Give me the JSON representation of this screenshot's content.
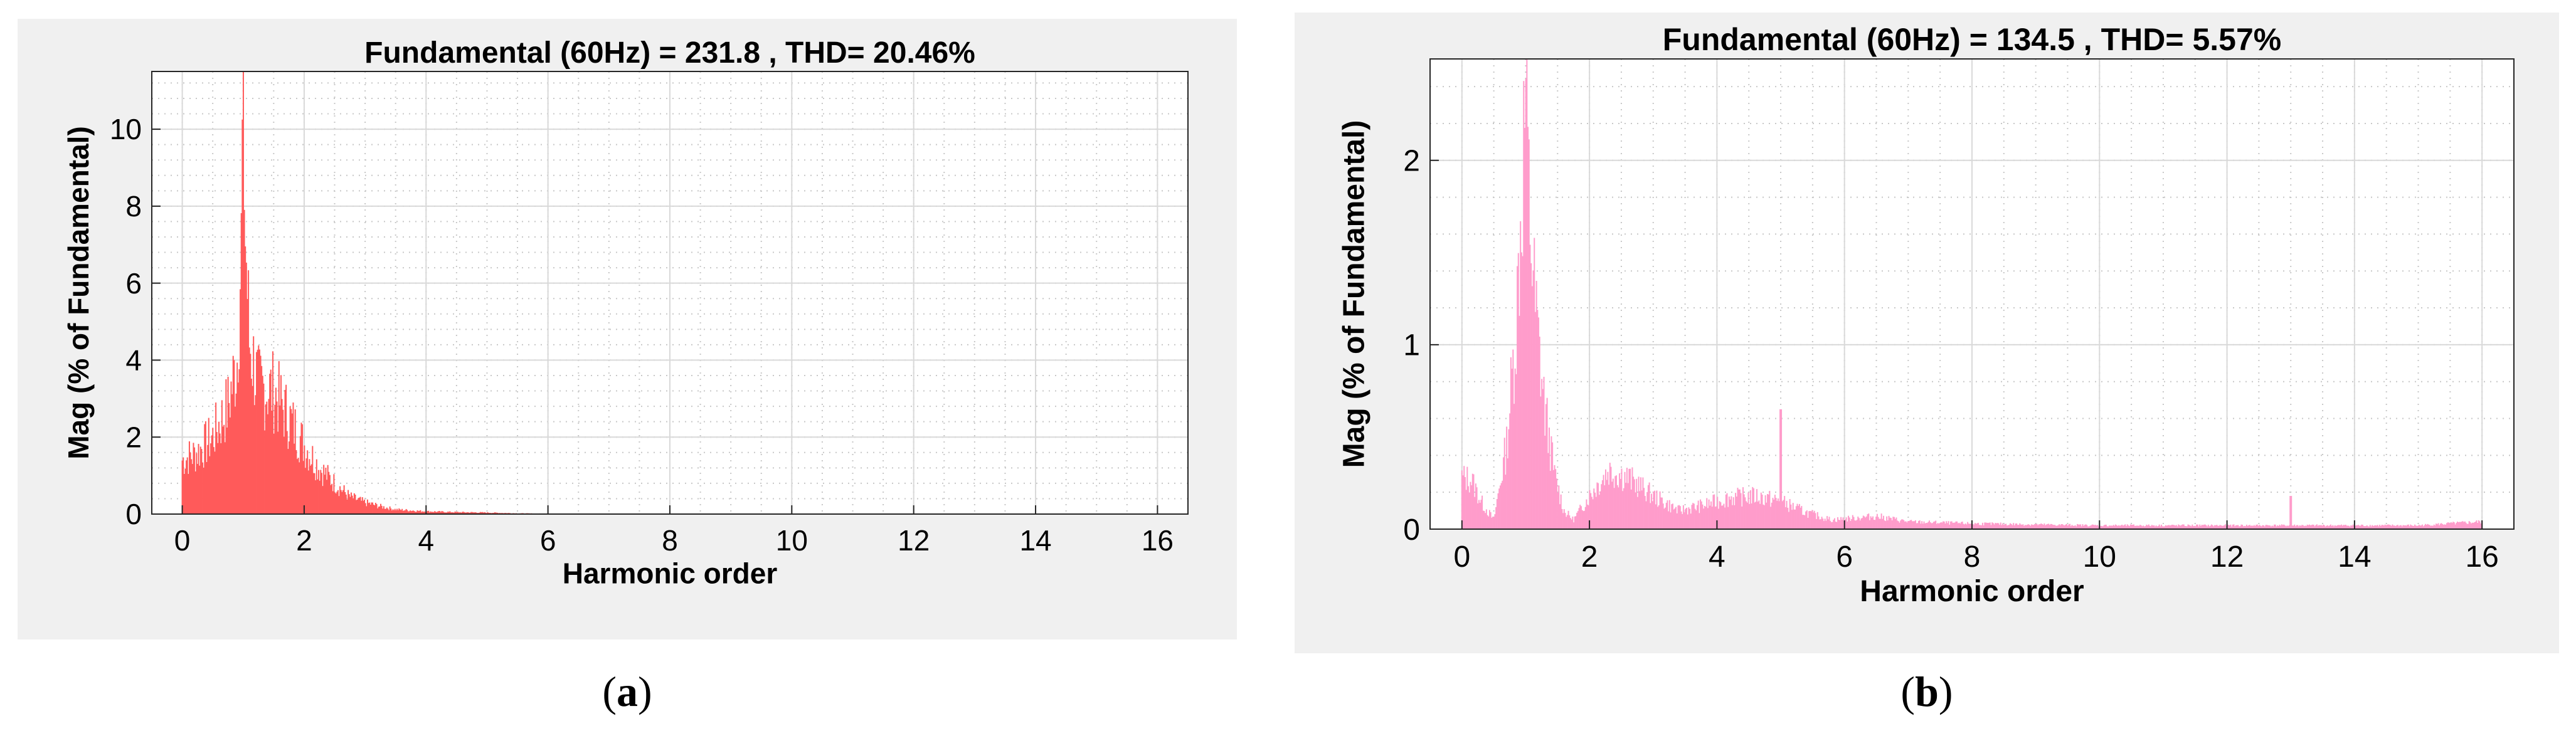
{
  "captions": [
    {
      "open": "(",
      "letter": "a",
      "close": ")"
    },
    {
      "open": "(",
      "letter": "b",
      "close": ")"
    }
  ],
  "chart_data": [
    {
      "type": "bar",
      "title": "Fundamental (60Hz) = 231.8 , THD= 20.46%",
      "xlabel": "Harmonic order",
      "ylabel": "Mag (% of Fundamental)",
      "xlim": [
        -0.5,
        16.5
      ],
      "ylim": [
        0,
        11.5
      ],
      "xticks": [
        0,
        2,
        4,
        6,
        8,
        10,
        12,
        14,
        16
      ],
      "yticks": [
        0,
        2,
        4,
        6,
        8,
        10
      ],
      "grid": true,
      "color": "#ff5a5a",
      "bin_width": 0.0167,
      "x": [
        0,
        0.25,
        0.5,
        0.75,
        0.9,
        0.97,
        1.0,
        1.03,
        1.1,
        1.25,
        1.5,
        1.75,
        2.0,
        2.25,
        2.5,
        2.75,
        3.0,
        3.25,
        3.5,
        4.0,
        4.5,
        5.0,
        5.5,
        6.0,
        8.0,
        16.0
      ],
      "values": [
        1.4,
        1.6,
        2.0,
        2.8,
        4.0,
        7.0,
        11.5,
        7.5,
        4.5,
        3.3,
        3.2,
        2.5,
        1.8,
        1.2,
        0.8,
        0.45,
        0.3,
        0.2,
        0.12,
        0.07,
        0.05,
        0.04,
        0.02,
        0.01,
        0.005,
        0.003
      ]
    },
    {
      "type": "bar",
      "title": "Fundamental (60Hz) = 134.5 , THD= 5.57%",
      "xlabel": "Harmonic order",
      "ylabel": "Mag (% of Fundamental)",
      "xlim": [
        -0.5,
        16.5
      ],
      "ylim": [
        0,
        2.55
      ],
      "xticks": [
        0,
        2,
        4,
        6,
        8,
        10,
        12,
        14,
        16
      ],
      "yticks": [
        0,
        1,
        2
      ],
      "grid": true,
      "color": "#ff9ccb",
      "bin_width": 0.0167,
      "x": [
        0,
        0.15,
        0.3,
        0.5,
        0.7,
        0.85,
        0.95,
        1.0,
        1.05,
        1.15,
        1.3,
        1.45,
        1.6,
        1.75,
        2.0,
        2.3,
        2.6,
        3.0,
        3.4,
        3.8,
        4.2,
        4.6,
        5.0,
        5.4,
        5.8,
        6.5,
        7.0,
        8.0,
        10.0,
        12.0,
        13.0,
        14.0,
        15.0,
        16.0
      ],
      "values": [
        0.28,
        0.27,
        0.15,
        0.05,
        0.45,
        1.1,
        1.9,
        2.4,
        1.8,
        1.2,
        0.65,
        0.3,
        0.1,
        0.05,
        0.18,
        0.32,
        0.28,
        0.18,
        0.1,
        0.13,
        0.17,
        0.18,
        0.15,
        0.09,
        0.05,
        0.07,
        0.04,
        0.03,
        0.02,
        0.02,
        0.02,
        0.02,
        0.02,
        0.04
      ],
      "spikes": [
        {
          "x": 5.0,
          "value": 0.65
        },
        {
          "x": 13.0,
          "value": 0.18
        }
      ]
    }
  ]
}
